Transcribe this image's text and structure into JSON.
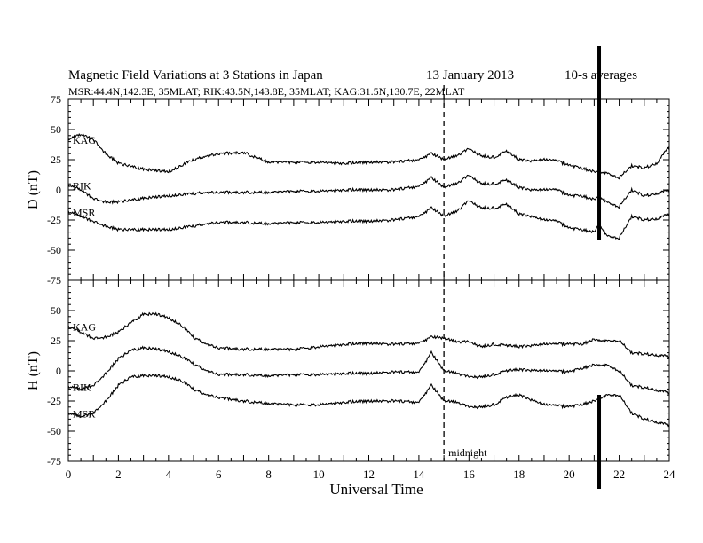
{
  "header": {
    "title": "Magnetic Field Variations at 3 Stations in Japan",
    "date": "13 January 2013",
    "averaging": "10-s averages",
    "stations_line": "MSR:44.4N,142.3E, 35MLAT;  RIK:43.5N,143.8E, 35MLAT;  KAG:31.5N,130.7E, 22MLAT"
  },
  "annotations": {
    "midnight_label": "midnight",
    "midnight_ut": 15,
    "event_ut": 21.2
  },
  "chart_data": [
    {
      "type": "line",
      "ylabel": "D (nT)",
      "xlabel": "",
      "xlim": [
        0,
        24
      ],
      "ylim": [
        -75,
        75
      ],
      "yticks": [
        75,
        50,
        25,
        0,
        -25,
        -50,
        -75
      ],
      "xticks": [
        0,
        2,
        4,
        6,
        8,
        10,
        12,
        14,
        16,
        18,
        20,
        22,
        24
      ],
      "grid": false,
      "series": [
        {
          "name": "KAG",
          "x": [
            0,
            0.5,
            1,
            1.5,
            2,
            3,
            4,
            5,
            6,
            7,
            8,
            9,
            10,
            11,
            12,
            13,
            14,
            14.5,
            15,
            15.5,
            16,
            16.5,
            17,
            17.5,
            18,
            18.5,
            19,
            19.5,
            20,
            20.5,
            21,
            21.2,
            21.5,
            22,
            22.5,
            23,
            23.5,
            24
          ],
          "y": [
            42,
            46,
            42,
            30,
            22,
            17,
            15,
            25,
            30,
            31,
            23,
            23,
            23,
            22,
            23,
            23,
            25,
            30,
            25,
            28,
            34,
            28,
            27,
            32,
            25,
            24,
            25,
            24,
            20,
            18,
            15,
            15,
            14,
            10,
            20,
            18,
            22,
            36
          ]
        },
        {
          "name": "RIK",
          "x": [
            0,
            0.5,
            1,
            1.5,
            2,
            3,
            4,
            5,
            6,
            7,
            8,
            9,
            10,
            11,
            12,
            13,
            14,
            14.5,
            15,
            15.5,
            16,
            16.5,
            17,
            17.5,
            18,
            18.5,
            19,
            19.5,
            20,
            20.5,
            21,
            21.2,
            21.5,
            22,
            22.5,
            23,
            23.5,
            24
          ],
          "y": [
            4,
            0,
            -7,
            -10,
            -10,
            -7,
            -5,
            -3,
            -2,
            -2,
            -2,
            -1,
            -1,
            0,
            0,
            0,
            3,
            10,
            2,
            5,
            12,
            5,
            5,
            8,
            2,
            0,
            0,
            0,
            -5,
            -5,
            -8,
            -5,
            -10,
            -14,
            0,
            -5,
            -3,
            0
          ]
        },
        {
          "name": "MSR",
          "x": [
            0,
            0.5,
            1,
            1.5,
            2,
            3,
            4,
            5,
            6,
            7,
            8,
            9,
            10,
            11,
            12,
            13,
            14,
            14.5,
            15,
            15.5,
            16,
            16.5,
            17,
            17.5,
            18,
            18.5,
            19,
            19.5,
            20,
            20.5,
            21,
            21.2,
            21.5,
            22,
            22.5,
            23,
            23.5,
            24
          ],
          "y": [
            -18,
            -22,
            -26,
            -30,
            -33,
            -33,
            -33,
            -30,
            -27,
            -27,
            -28,
            -27,
            -27,
            -26,
            -26,
            -25,
            -22,
            -15,
            -22,
            -18,
            -9,
            -15,
            -15,
            -12,
            -20,
            -22,
            -25,
            -26,
            -32,
            -33,
            -35,
            -28,
            -38,
            -40,
            -22,
            -25,
            -24,
            -20
          ]
        }
      ]
    },
    {
      "type": "line",
      "ylabel": "H (nT)",
      "xlabel": "Universal Time",
      "xlim": [
        0,
        24
      ],
      "ylim": [
        -75,
        75
      ],
      "yticks": [
        50,
        25,
        0,
        -25,
        -50,
        -75
      ],
      "xticks": [
        0,
        2,
        4,
        6,
        8,
        10,
        12,
        14,
        16,
        18,
        20,
        22,
        24
      ],
      "grid": false,
      "series": [
        {
          "name": "KAG",
          "x": [
            0,
            0.5,
            1,
            1.5,
            2,
            2.5,
            3,
            3.5,
            4,
            4.5,
            5,
            5.5,
            6,
            7,
            8,
            9,
            10,
            11,
            12,
            13,
            14,
            14.5,
            15,
            15.5,
            16,
            16.5,
            17,
            17.5,
            18,
            19,
            20,
            20.5,
            21,
            21.5,
            22,
            22.5,
            23,
            24
          ],
          "y": [
            37,
            32,
            27,
            28,
            32,
            40,
            47,
            47,
            44,
            38,
            28,
            22,
            19,
            18,
            18,
            18,
            20,
            22,
            23,
            22,
            23,
            28,
            27,
            24,
            24,
            20,
            22,
            21,
            20,
            22,
            22,
            22,
            26,
            25,
            25,
            15,
            14,
            12
          ]
        },
        {
          "name": "RIK",
          "x": [
            0,
            0.5,
            1,
            1.5,
            2,
            2.5,
            3,
            3.5,
            4,
            4.5,
            5,
            5.5,
            6,
            7,
            8,
            9,
            10,
            11,
            12,
            13,
            14,
            14.5,
            15,
            15.5,
            16,
            16.5,
            17,
            17.5,
            18,
            19,
            20,
            20.5,
            21,
            21.5,
            22,
            22.5,
            23,
            24
          ],
          "y": [
            -13,
            -15,
            -12,
            -2,
            10,
            17,
            19,
            18,
            16,
            12,
            6,
            0,
            -3,
            -3,
            -4,
            -3,
            -3,
            -2,
            -2,
            -1,
            -1,
            15,
            0,
            -2,
            -5,
            -5,
            -3,
            0,
            1,
            0,
            -1,
            2,
            5,
            5,
            0,
            -12,
            -14,
            -18
          ]
        },
        {
          "name": "MSR",
          "x": [
            0,
            0.5,
            1,
            1.5,
            2,
            2.5,
            3,
            3.5,
            4,
            4.5,
            5,
            5.5,
            6,
            7,
            8,
            9,
            10,
            11,
            12,
            13,
            14,
            14.5,
            15,
            15.5,
            16,
            16.5,
            17,
            17.5,
            18,
            19,
            20,
            20.5,
            21,
            21.5,
            22,
            22.5,
            23,
            24
          ],
          "y": [
            -35,
            -38,
            -35,
            -25,
            -12,
            -5,
            -4,
            -4,
            -5,
            -8,
            -15,
            -20,
            -22,
            -25,
            -27,
            -28,
            -28,
            -26,
            -25,
            -25,
            -26,
            -12,
            -25,
            -26,
            -30,
            -30,
            -28,
            -22,
            -20,
            -28,
            -30,
            -28,
            -25,
            -20,
            -20,
            -35,
            -40,
            -45
          ]
        }
      ]
    }
  ]
}
